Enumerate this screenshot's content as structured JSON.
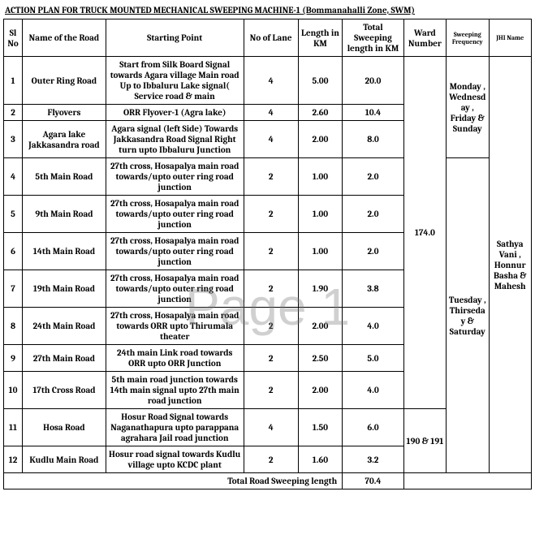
{
  "title": "ACTION PLAN FOR TRUCK MOUNTED MECHANICAL SWEEPING MACHINE-1 (Bommanahalli Zone, SWM)",
  "watermark": "Page 1",
  "headers": {
    "sl": "Sl No",
    "name": "Name of the Road",
    "start": "Starting Point",
    "lane": "No of  Lane",
    "len": "Length in KM",
    "tot": "Total Sweeping length in KM",
    "ward": "Ward Number",
    "freq": "Sweeping Frequency",
    "jhi": "JHI Name"
  },
  "rows": [
    {
      "sl": "1",
      "name": "Outer Ring Road",
      "start": "Start from Silk Board Signal towards Agara village Main road Up to Ibbaluru Lake signal( Service road & main",
      "lane": "4",
      "len": "5.00",
      "tot": "20.0"
    },
    {
      "sl": "2",
      "name": "Flyovers",
      "start": "ORR Flyover-1 (Agra lake)",
      "lane": "4",
      "len": "2.60",
      "tot": "10.4"
    },
    {
      "sl": "3",
      "name": "Agara lake Jakkasandra road",
      "start": "Agara signal (left Side) Towards Jakkasandra Road Signal Right turn upto Ibbaluru Junction",
      "lane": "4",
      "len": "2.00",
      "tot": "8.0"
    },
    {
      "sl": "4",
      "name": "5th Main Road",
      "start": "27th cross, Hosapalya main road towards/upto outer ring road junction",
      "lane": "2",
      "len": "1.00",
      "tot": "2.0"
    },
    {
      "sl": "5",
      "name": "9th Main Road",
      "start": "27th cross, Hosapalya main road towards/upto outer ring road junction",
      "lane": "2",
      "len": "1.00",
      "tot": "2.0"
    },
    {
      "sl": "6",
      "name": "14th Main Road",
      "start": "27th cross, Hosapalya main road towards/upto outer ring road junction",
      "lane": "2",
      "len": "1.00",
      "tot": "2.0"
    },
    {
      "sl": "7",
      "name": "19th Main Road",
      "start": "27th cross, Hosapalya main road towards/upto outer ring road junction",
      "lane": "2",
      "len": "1.90",
      "tot": "3.8"
    },
    {
      "sl": "8",
      "name": "24th Main Road",
      "start": "27th cross, Hosapalya main road towards ORR upto Thirumala theater",
      "lane": "2",
      "len": "2.00",
      "tot": "4.0"
    },
    {
      "sl": "9",
      "name": "27th Main Road",
      "start": "24th main Link road towards ORR upto ORR Junction",
      "lane": "2",
      "len": "2.50",
      "tot": "5.0"
    },
    {
      "sl": "10",
      "name": "17th Cross Road",
      "start": "5th main road junction towards 14th main signal upto 27th main road junction",
      "lane": "2",
      "len": "2.00",
      "tot": "4.0"
    },
    {
      "sl": "11",
      "name": "Hosa Road",
      "start": "Hosur Road Signal towards Naganathapura upto parappana agrahara Jail road junction",
      "lane": "4",
      "len": "1.50",
      "tot": "6.0"
    },
    {
      "sl": "12",
      "name": "Kudlu Main Road",
      "start": "Hosur road signal towards Kudlu village upto KCDC plant",
      "lane": "2",
      "len": "1.60",
      "tot": "3.2"
    }
  ],
  "ward1": "174.0",
  "ward2": "190 & 191",
  "freq1": "Monday , Wednesday , Friday & Sunday",
  "freq2": "Tuesday , Thirseday & Saturday",
  "jhi": "Sathya Vani , Honnur Basha & Mahesh",
  "total_label": "Total Road Sweeping length",
  "total_value": "70.4"
}
